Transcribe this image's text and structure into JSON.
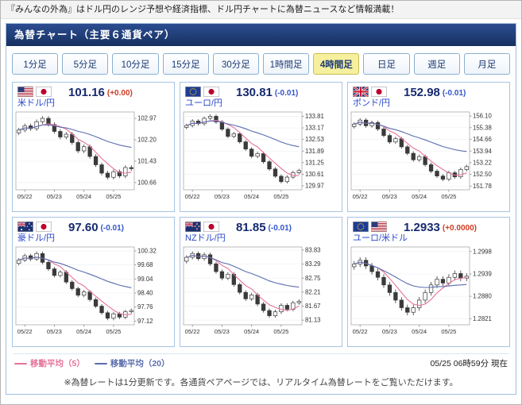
{
  "top_bar": {
    "text": "『みんなの外為』はドル円のレンジ予想や経済指標、ドル円チャートに為替ニュースなど情報満載！"
  },
  "header": {
    "title": "為替チャート（主要６通貨ペア）"
  },
  "timeframes": {
    "items": [
      {
        "label": "1分足",
        "selected": false
      },
      {
        "label": "5分足",
        "selected": false
      },
      {
        "label": "10分足",
        "selected": false
      },
      {
        "label": "15分足",
        "selected": false
      },
      {
        "label": "30分足",
        "selected": false
      },
      {
        "label": "1時間足",
        "selected": false
      },
      {
        "label": "4時間足",
        "selected": true
      },
      {
        "label": "日足",
        "selected": false
      },
      {
        "label": "週足",
        "selected": false
      },
      {
        "label": "月足",
        "selected": false
      }
    ]
  },
  "chart_style": {
    "candle_color": "#3a3a3a",
    "candle_up_fill": "#ffffff",
    "grid_color": "#edf0f4",
    "axis_color": "#aaaaaa",
    "label_color": "#333333"
  },
  "pairs": [
    {
      "name": "米ドル/円",
      "flags": [
        "us",
        "jp"
      ],
      "price": "101.16",
      "change": "(+0.00)",
      "change_color": "#d03a20",
      "chart": {
        "type": "candlestick",
        "y_ticks": [
          "102.97",
          "102.20",
          "101.43",
          "100.66"
        ],
        "y_min": 100.4,
        "y_max": 103.2,
        "x_ticks": [
          {
            "index": 1,
            "label": "05/22"
          },
          {
            "index": 6,
            "label": "05/23"
          },
          {
            "index": 11,
            "label": "05/24"
          },
          {
            "index": 16,
            "label": "05/25"
          }
        ],
        "first_open": 102.45,
        "wick": 0.08,
        "closes": [
          102.55,
          102.7,
          102.6,
          102.85,
          102.97,
          102.75,
          102.5,
          102.3,
          102.4,
          102.1,
          101.8,
          101.95,
          101.6,
          101.3,
          101.0,
          100.85,
          101.05,
          100.9,
          101.2,
          101.16
        ]
      }
    },
    {
      "name": "ユーロ/円",
      "flags": [
        "eu",
        "jp"
      ],
      "price": "130.81",
      "change": "(-0.01)",
      "change_color": "#3355cc",
      "chart": {
        "type": "candlestick",
        "y_ticks": [
          "133.81",
          "133.17",
          "132.53",
          "131.89",
          "131.25",
          "130.61",
          "129.97"
        ],
        "y_min": 129.75,
        "y_max": 134.05,
        "x_ticks": [
          {
            "index": 1,
            "label": "05/22"
          },
          {
            "index": 6,
            "label": "05/23"
          },
          {
            "index": 11,
            "label": "05/24"
          },
          {
            "index": 16,
            "label": "05/25"
          }
        ],
        "first_open": 133.2,
        "wick": 0.1,
        "closes": [
          133.3,
          133.55,
          133.4,
          133.7,
          133.81,
          133.5,
          133.1,
          132.7,
          132.85,
          132.4,
          132.0,
          131.6,
          131.75,
          131.3,
          130.9,
          130.5,
          130.2,
          130.45,
          130.7,
          130.81
        ]
      }
    },
    {
      "name": "ポンド/円",
      "flags": [
        "gb",
        "jp"
      ],
      "price": "152.98",
      "change": "(-0.01)",
      "change_color": "#3355cc",
      "chart": {
        "type": "candlestick",
        "y_ticks": [
          "156.10",
          "155.38",
          "154.66",
          "153.94",
          "153.22",
          "152.50",
          "151.78"
        ],
        "y_min": 151.55,
        "y_max": 156.35,
        "x_ticks": [
          {
            "index": 1,
            "label": "05/22"
          },
          {
            "index": 6,
            "label": "05/23"
          },
          {
            "index": 11,
            "label": "05/24"
          },
          {
            "index": 16,
            "label": "05/25"
          }
        ],
        "first_open": 155.45,
        "wick": 0.12,
        "closes": [
          155.6,
          155.85,
          155.5,
          155.7,
          155.3,
          154.9,
          154.5,
          154.7,
          154.2,
          153.8,
          153.4,
          153.6,
          153.1,
          152.7,
          152.4,
          152.2,
          152.6,
          152.35,
          152.8,
          152.98
        ]
      }
    },
    {
      "name": "豪ドル/円",
      "flags": [
        "au",
        "jp"
      ],
      "price": "97.60",
      "change": "(-0.01)",
      "change_color": "#3355cc",
      "chart": {
        "type": "candlestick",
        "y_ticks": [
          "100.32",
          "99.68",
          "99.04",
          "98.40",
          "97.76",
          "97.12"
        ],
        "y_min": 96.95,
        "y_max": 100.5,
        "x_ticks": [
          {
            "index": 1,
            "label": "05/22"
          },
          {
            "index": 6,
            "label": "05/23"
          },
          {
            "index": 11,
            "label": "05/24"
          },
          {
            "index": 16,
            "label": "05/25"
          }
        ],
        "first_open": 99.75,
        "wick": 0.09,
        "closes": [
          99.9,
          100.1,
          99.95,
          100.2,
          99.8,
          99.5,
          99.2,
          99.35,
          98.9,
          98.6,
          98.3,
          98.45,
          98.1,
          97.8,
          97.5,
          97.25,
          97.45,
          97.3,
          97.55,
          97.6
        ]
      }
    },
    {
      "name": "NZドル/円",
      "flags": [
        "nz",
        "jp"
      ],
      "price": "81.85",
      "change": "(-0.01)",
      "change_color": "#3355cc",
      "chart": {
        "type": "candlestick",
        "y_ticks": [
          "83.83",
          "83.29",
          "82.75",
          "82.21",
          "81.67",
          "81.13"
        ],
        "y_min": 80.95,
        "y_max": 83.95,
        "x_ticks": [
          {
            "index": 1,
            "label": "05/22"
          },
          {
            "index": 6,
            "label": "05/23"
          },
          {
            "index": 11,
            "label": "05/24"
          },
          {
            "index": 16,
            "label": "05/25"
          }
        ],
        "first_open": 83.4,
        "wick": 0.08,
        "closes": [
          83.55,
          83.7,
          83.5,
          83.65,
          83.3,
          83.0,
          82.75,
          82.9,
          82.5,
          82.2,
          81.95,
          82.1,
          81.75,
          81.5,
          81.3,
          81.45,
          81.7,
          81.55,
          81.8,
          81.85
        ]
      }
    },
    {
      "name": "ユーロ/米ドル",
      "flags": [
        "eu",
        "us"
      ],
      "price": "1.2933",
      "change": "(+0.0000)",
      "change_color": "#d03a20",
      "chart": {
        "type": "candlestick",
        "y_ticks": [
          "1.2998",
          "1.2939",
          "1.2880",
          "1.2821"
        ],
        "y_min": 1.2805,
        "y_max": 1.301,
        "x_ticks": [
          {
            "index": 1,
            "label": "05/22"
          },
          {
            "index": 6,
            "label": "05/23"
          },
          {
            "index": 11,
            "label": "05/24"
          },
          {
            "index": 16,
            "label": "05/25"
          }
        ],
        "first_open": 1.2958,
        "wick": 0.0008,
        "closes": [
          1.2965,
          1.2975,
          1.296,
          1.2945,
          1.293,
          1.291,
          1.289,
          1.287,
          1.285,
          1.2838,
          1.285,
          1.287,
          1.289,
          1.291,
          1.2925,
          1.2915,
          1.293,
          1.294,
          1.2928,
          1.2933
        ]
      }
    }
  ],
  "legend": {
    "ma5_label": "移動平均（5）",
    "ma20_label": "移動平均（20）",
    "ma5_color": "#e57399",
    "ma20_color": "#5b6dae",
    "timestamp": "05/25 06時59分 現在"
  },
  "footer": {
    "note": "※為替レートは1分更新です。各通貨ペアページでは、リアルタイム為替レートをご覧いただけます。"
  }
}
